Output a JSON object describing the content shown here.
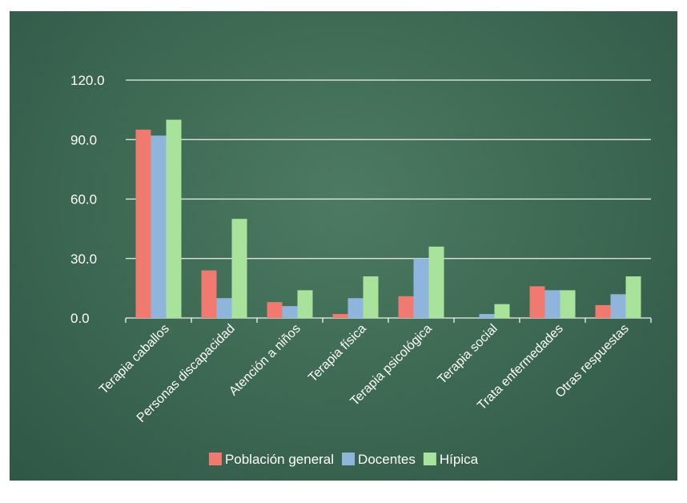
{
  "chart_data": {
    "type": "bar",
    "categories": [
      "Terapia caballos",
      "Personas discapacidad",
      "Atención a niños",
      "Terapia física",
      "Terapia psicológica",
      "Terapia social",
      "Trata enfermedades",
      "Otras respuestas"
    ],
    "series": [
      {
        "name": "Población general",
        "color": "#f07a6f",
        "values": [
          95.0,
          24.0,
          8.0,
          2.0,
          11.0,
          0.0,
          16.0,
          6.5
        ]
      },
      {
        "name": "Docentes",
        "color": "#8fb5dd",
        "values": [
          92.0,
          10.0,
          6.0,
          10.0,
          30.0,
          2.0,
          14.0,
          12.0
        ]
      },
      {
        "name": "Hípica",
        "color": "#a8e29b",
        "values": [
          100.0,
          50.0,
          14.0,
          21.0,
          36.0,
          7.0,
          14.0,
          21.0
        ]
      }
    ],
    "yticks": [
      "0.0",
      "30.0",
      "60.0",
      "90.0",
      "120.0"
    ],
    "ylim": [
      0,
      120
    ],
    "grid": true,
    "legend_position": "bottom",
    "title": "",
    "xlabel": "",
    "ylabel": ""
  }
}
